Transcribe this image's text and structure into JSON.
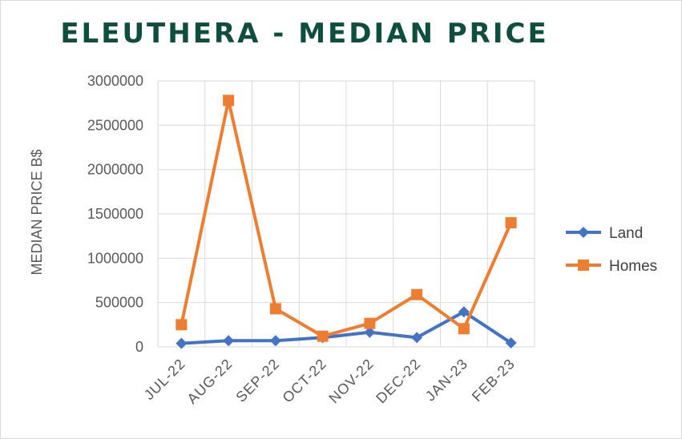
{
  "chart_data": {
    "type": "line",
    "title": "ELEUTHERA - MEDIAN PRICE",
    "xlabel": "",
    "ylabel": "MEDIAN PRICE B$",
    "categories": [
      "JUL-22",
      "AUG-22",
      "SEP-22",
      "OCT-22",
      "NOV-22",
      "DEC-22",
      "JAN-23",
      "FEB-23"
    ],
    "ylim": [
      0,
      3000000
    ],
    "yticks": [
      "0",
      "500000",
      "1000000",
      "1500000",
      "2000000",
      "2500000",
      "3000000"
    ],
    "grid": true,
    "legend": "right",
    "series": [
      {
        "name": "Land",
        "color": "#4472c4",
        "marker": "diamond",
        "values": [
          40000,
          70000,
          70000,
          105000,
          165000,
          105000,
          395000,
          45000
        ]
      },
      {
        "name": "Homes",
        "color": "#ed7d31",
        "marker": "square",
        "values": [
          250000,
          2780000,
          430000,
          120000,
          265000,
          590000,
          205000,
          1400000
        ]
      }
    ]
  }
}
